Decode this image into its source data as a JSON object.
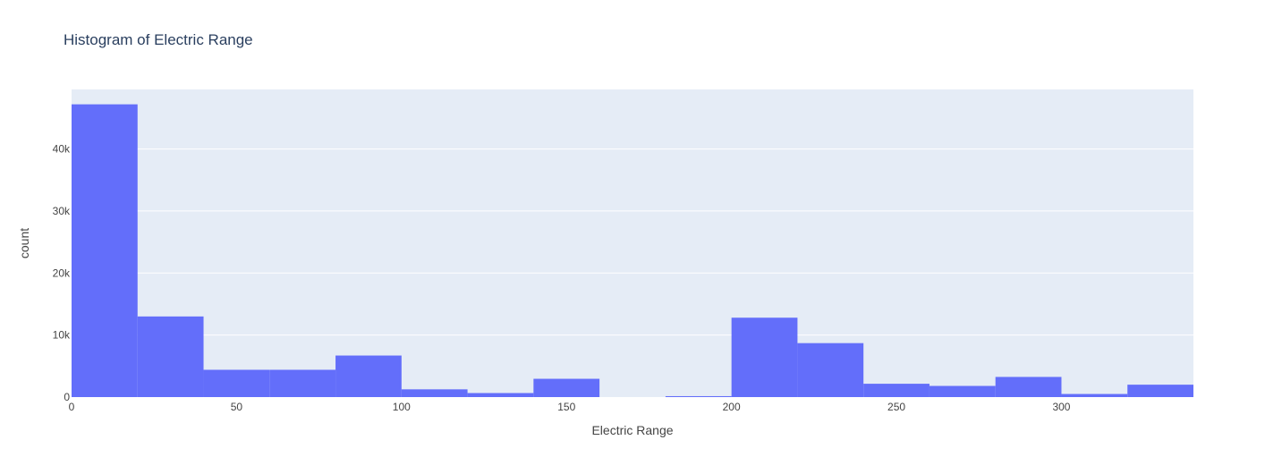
{
  "chart_data": {
    "type": "bar",
    "title": "Histogram of Electric Range",
    "xlabel": "Electric Range",
    "ylabel": "count",
    "xlim": [
      0,
      340
    ],
    "ylim": [
      0,
      49600
    ],
    "x_ticks": [
      {
        "value": 0,
        "label": "0"
      },
      {
        "value": 50,
        "label": "50"
      },
      {
        "value": 100,
        "label": "100"
      },
      {
        "value": 150,
        "label": "150"
      },
      {
        "value": 200,
        "label": "200"
      },
      {
        "value": 250,
        "label": "250"
      },
      {
        "value": 300,
        "label": "300"
      }
    ],
    "y_ticks": [
      {
        "value": 0,
        "label": "0"
      },
      {
        "value": 10000,
        "label": "10k"
      },
      {
        "value": 20000,
        "label": "20k"
      },
      {
        "value": 30000,
        "label": "30k"
      },
      {
        "value": 40000,
        "label": "40k"
      }
    ],
    "bins": [
      {
        "start": 0,
        "end": 20,
        "count": 47200
      },
      {
        "start": 20,
        "end": 40,
        "count": 13000
      },
      {
        "start": 40,
        "end": 60,
        "count": 4400
      },
      {
        "start": 60,
        "end": 80,
        "count": 4400
      },
      {
        "start": 80,
        "end": 100,
        "count": 6700
      },
      {
        "start": 100,
        "end": 120,
        "count": 1250
      },
      {
        "start": 120,
        "end": 140,
        "count": 650
      },
      {
        "start": 140,
        "end": 160,
        "count": 2950
      },
      {
        "start": 160,
        "end": 180,
        "count": 0
      },
      {
        "start": 180,
        "end": 200,
        "count": 150
      },
      {
        "start": 200,
        "end": 220,
        "count": 12800
      },
      {
        "start": 220,
        "end": 240,
        "count": 8700
      },
      {
        "start": 240,
        "end": 260,
        "count": 2150
      },
      {
        "start": 260,
        "end": 280,
        "count": 1800
      },
      {
        "start": 280,
        "end": 300,
        "count": 3250
      },
      {
        "start": 300,
        "end": 320,
        "count": 500
      },
      {
        "start": 320,
        "end": 340,
        "count": 2000
      }
    ],
    "grid": true,
    "colors": {
      "bar": "#636efa",
      "plot_bg": "#e5ecf6",
      "grid": "#ffffff",
      "text": "#444444",
      "title": "#2a3f5f"
    }
  }
}
